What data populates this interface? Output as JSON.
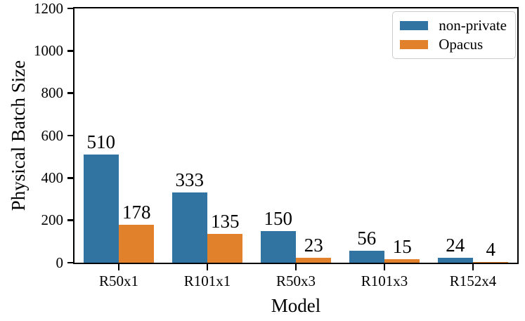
{
  "chart_data": {
    "type": "bar",
    "title": "",
    "xlabel": "Model",
    "ylabel": "Physical Batch Size",
    "categories": [
      "R50x1",
      "R101x1",
      "R50x3",
      "R101x3",
      "R152x4"
    ],
    "series": [
      {
        "name": "non-private",
        "color": "#3274A1",
        "values": [
          510,
          333,
          150,
          56,
          24
        ]
      },
      {
        "name": "Opacus",
        "color": "#E1812C",
        "values": [
          178,
          135,
          23,
          15,
          4
        ]
      }
    ],
    "ylim": [
      0,
      1200
    ],
    "yticks": [
      0,
      200,
      400,
      600,
      800,
      1000,
      1200
    ],
    "grid": false,
    "legend_position": "upper right",
    "bar_value_labels": true,
    "group_width_fraction": 0.8,
    "axis_color": "#000000",
    "legend_border_color": "#cccccc"
  }
}
